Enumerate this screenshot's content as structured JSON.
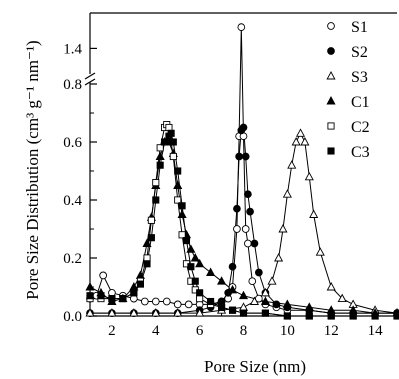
{
  "chart_data": {
    "type": "line",
    "title": "",
    "xlabel": "Pore Size (nm)",
    "ylabel": "Pore Size Distribution (cm³ g⁻¹ nm⁻¹)",
    "xlim": [
      1,
      15
    ],
    "ylim_lower": [
      0,
      0.8
    ],
    "ylim_upper": [
      1.3,
      1.55
    ],
    "axis_break": "y between 0.8 and 1.3",
    "x_ticks": [
      2,
      4,
      6,
      8,
      10,
      12,
      14
    ],
    "x_tick_labels": [
      "2",
      "4",
      "6",
      "8",
      "10",
      "12",
      "14"
    ],
    "y_ticks_lower": [
      0.0,
      0.2,
      0.4,
      0.6,
      0.8
    ],
    "y_tick_labels_lower": [
      "0.0",
      "0.2",
      "0.4",
      "0.6",
      "0.8"
    ],
    "y_ticks_upper": [
      1.4
    ],
    "y_tick_labels_upper": [
      "1.4"
    ],
    "legend_position": "top-right",
    "series": [
      {
        "name": "S1",
        "marker": "circle-open",
        "x": [
          1.0,
          1.3,
          1.6,
          2.0,
          2.5,
          3.0,
          3.5,
          4.0,
          4.5,
          5.0,
          5.5,
          6.0,
          6.5,
          7.0,
          7.3,
          7.5,
          7.7,
          7.8,
          7.9,
          8.0,
          8.1,
          8.2,
          8.4,
          8.7,
          9.0,
          9.5,
          10.0,
          11.0,
          12.0,
          13.0,
          14.0,
          15.0
        ],
        "y": [
          0.06,
          0.07,
          0.14,
          0.08,
          0.07,
          0.06,
          0.05,
          0.05,
          0.05,
          0.04,
          0.04,
          0.04,
          0.04,
          0.05,
          0.06,
          0.1,
          0.3,
          0.62,
          1.49,
          0.62,
          0.3,
          0.25,
          0.12,
          0.06,
          0.04,
          0.03,
          0.02,
          0.02,
          0.01,
          0.01,
          0.01,
          0.01
        ]
      },
      {
        "name": "S2",
        "marker": "circle-filled",
        "x": [
          1.0,
          2.0,
          3.0,
          4.0,
          5.0,
          6.0,
          6.5,
          7.0,
          7.3,
          7.5,
          7.7,
          7.8,
          7.9,
          8.0,
          8.1,
          8.2,
          8.3,
          8.5,
          8.7,
          9.0,
          9.5,
          10.0,
          11.0,
          12.0,
          13.0,
          14.0,
          15.0
        ],
        "y": [
          0.01,
          0.01,
          0.01,
          0.01,
          0.01,
          0.02,
          0.03,
          0.05,
          0.08,
          0.17,
          0.37,
          0.55,
          0.64,
          0.65,
          0.55,
          0.42,
          0.36,
          0.25,
          0.15,
          0.08,
          0.04,
          0.03,
          0.02,
          0.01,
          0.01,
          0.01,
          0.01
        ]
      },
      {
        "name": "S3",
        "marker": "triangle-open",
        "x": [
          1.0,
          2.0,
          3.0,
          4.0,
          5.0,
          6.0,
          7.0,
          8.0,
          8.5,
          9.0,
          9.3,
          9.6,
          9.8,
          10.0,
          10.2,
          10.4,
          10.6,
          10.8,
          11.0,
          11.2,
          11.5,
          12.0,
          12.5,
          13.0,
          14.0,
          15.0
        ],
        "y": [
          0.01,
          0.01,
          0.01,
          0.01,
          0.01,
          0.01,
          0.02,
          0.03,
          0.05,
          0.08,
          0.12,
          0.2,
          0.3,
          0.42,
          0.52,
          0.6,
          0.63,
          0.6,
          0.48,
          0.35,
          0.22,
          0.1,
          0.06,
          0.04,
          0.02,
          0.01
        ]
      },
      {
        "name": "C1",
        "marker": "triangle-filled",
        "x": [
          1.0,
          1.5,
          2.0,
          2.5,
          3.0,
          3.3,
          3.6,
          3.8,
          4.0,
          4.2,
          4.4,
          4.6,
          4.8,
          5.0,
          5.2,
          5.4,
          5.6,
          5.8,
          6.0,
          6.5,
          7.0,
          7.5,
          8.0,
          9.0,
          10.0,
          11.0,
          12.0,
          13.0,
          14.0,
          15.0
        ],
        "y": [
          0.1,
          0.08,
          0.05,
          0.06,
          0.1,
          0.14,
          0.25,
          0.34,
          0.45,
          0.55,
          0.6,
          0.6,
          0.56,
          0.45,
          0.35,
          0.28,
          0.23,
          0.2,
          0.18,
          0.15,
          0.12,
          0.09,
          0.07,
          0.05,
          0.04,
          0.03,
          0.02,
          0.02,
          0.01,
          0.01
        ]
      },
      {
        "name": "C2",
        "marker": "square-open",
        "x": [
          1.0,
          1.5,
          2.0,
          2.5,
          3.0,
          3.3,
          3.6,
          3.8,
          4.0,
          4.2,
          4.4,
          4.5,
          4.6,
          4.8,
          5.0,
          5.2,
          5.4,
          5.6,
          5.8,
          6.0,
          6.5,
          7.0,
          7.5,
          8.0,
          9.0,
          10.0,
          11.0,
          12.0,
          13.0,
          14.0,
          15.0
        ],
        "y": [
          0.06,
          0.06,
          0.06,
          0.06,
          0.08,
          0.12,
          0.2,
          0.33,
          0.46,
          0.58,
          0.65,
          0.66,
          0.65,
          0.55,
          0.4,
          0.28,
          0.18,
          0.12,
          0.09,
          0.06,
          0.04,
          0.03,
          0.02,
          0.01,
          0.01,
          0.0,
          0.0,
          0.0,
          0.0,
          0.0,
          0.0
        ]
      },
      {
        "name": "C3",
        "marker": "square-filled",
        "x": [
          1.0,
          1.5,
          2.0,
          2.5,
          3.0,
          3.3,
          3.6,
          3.8,
          4.0,
          4.2,
          4.4,
          4.6,
          4.7,
          4.8,
          5.0,
          5.2,
          5.4,
          5.6,
          5.8,
          6.0,
          6.5,
          7.0,
          7.5,
          8.0,
          9.0,
          10.0,
          11.0,
          12.0,
          13.0,
          14.0,
          15.0
        ],
        "y": [
          0.07,
          0.07,
          0.06,
          0.06,
          0.08,
          0.11,
          0.18,
          0.27,
          0.4,
          0.52,
          0.6,
          0.62,
          0.63,
          0.6,
          0.5,
          0.38,
          0.26,
          0.17,
          0.12,
          0.08,
          0.05,
          0.03,
          0.02,
          0.01,
          0.01,
          0.0,
          0.0,
          0.0,
          0.0,
          0.0,
          0.0
        ]
      }
    ]
  }
}
